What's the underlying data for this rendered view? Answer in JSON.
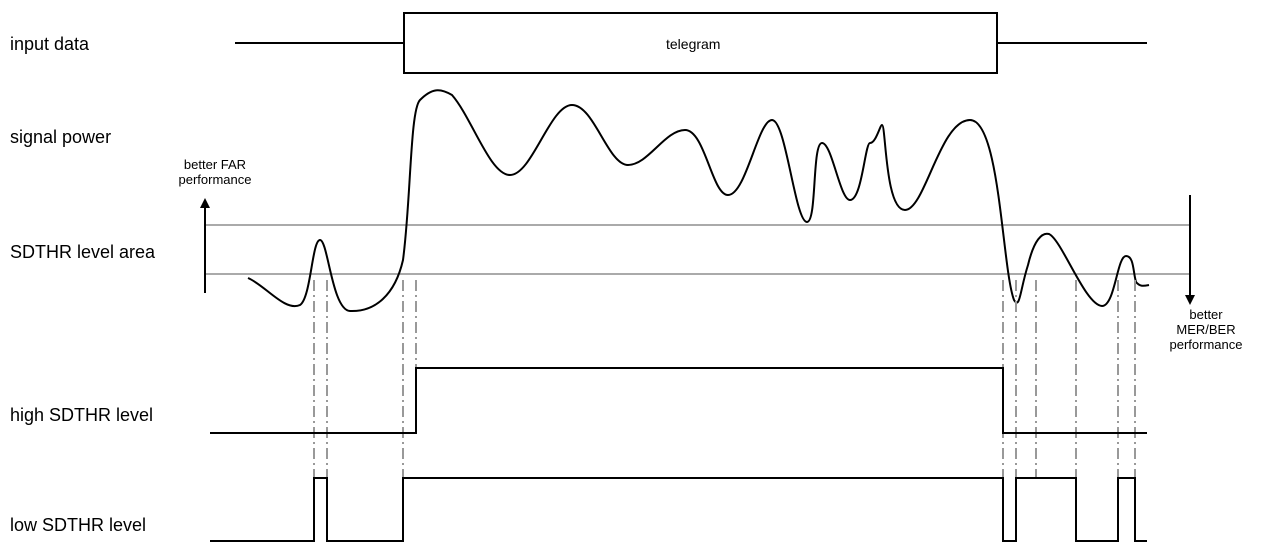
{
  "rows": {
    "input_data": "input data",
    "signal_power": "signal power",
    "sdthr_area": "SDTHR level area",
    "high_level": "high SDTHR level",
    "low_level": "low SDTHR level"
  },
  "telegram_label": "telegram",
  "annotations": {
    "far_line1": "better FAR",
    "far_line2": "performance",
    "mer_line1": "better",
    "mer_line2": "MER/BER",
    "mer_line3": "performance"
  },
  "colors": {
    "line": "#000000",
    "threshold": "#555555",
    "dashed": "#999999"
  }
}
